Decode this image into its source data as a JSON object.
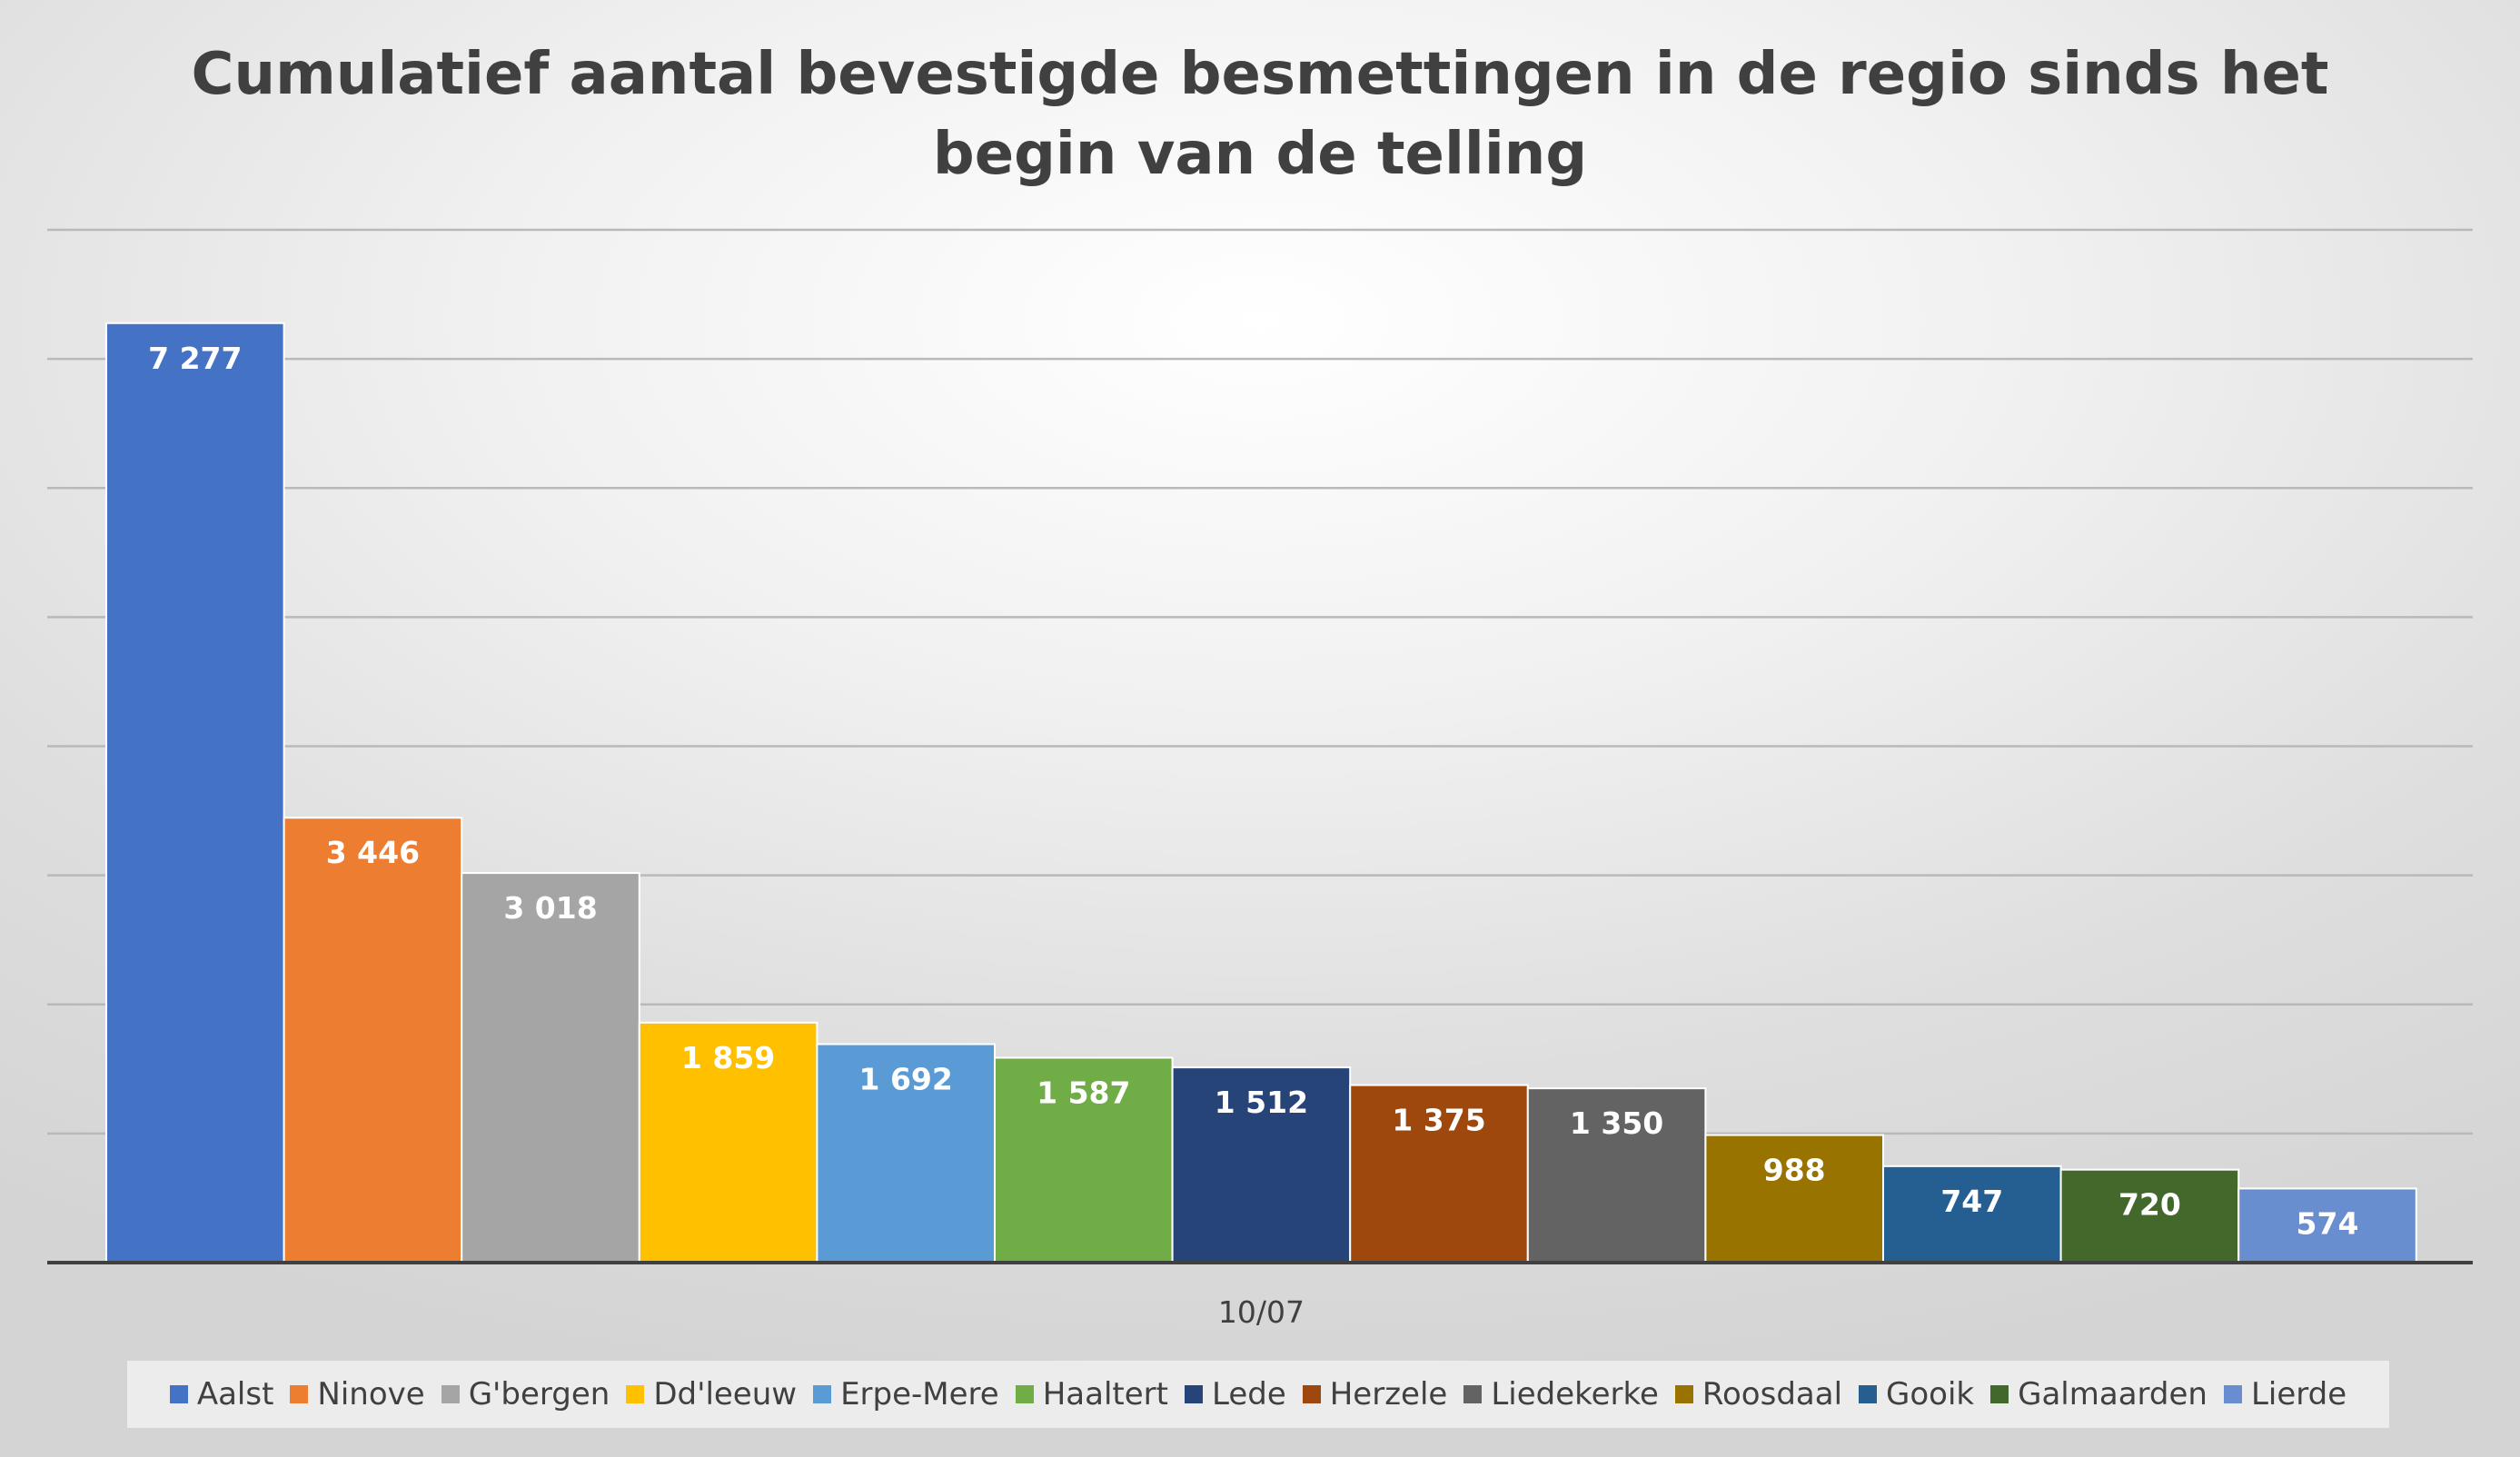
{
  "chart_data": {
    "type": "bar",
    "title": "Cumulatief aantal bevestigde besmettingen in de regio sinds het begin van de telling",
    "categories": [
      "10/07"
    ],
    "series": [
      {
        "name": "Aalst",
        "values": [
          7277
        ],
        "label": "7 277",
        "color": "#4472C4"
      },
      {
        "name": "Ninove",
        "values": [
          3446
        ],
        "label": "3 446",
        "color": "#ED7D31"
      },
      {
        "name": "G'bergen",
        "values": [
          3018
        ],
        "label": "3 018",
        "color": "#A5A5A5"
      },
      {
        "name": "Dd'leeuw",
        "values": [
          1859
        ],
        "label": "1 859",
        "color": "#FFC000"
      },
      {
        "name": "Erpe-Mere",
        "values": [
          1692
        ],
        "label": "1 692",
        "color": "#5B9BD5"
      },
      {
        "name": "Haaltert",
        "values": [
          1587
        ],
        "label": "1 587",
        "color": "#70AD47"
      },
      {
        "name": "Lede",
        "values": [
          1512
        ],
        "label": "1 512",
        "color": "#264478"
      },
      {
        "name": "Herzele",
        "values": [
          1375
        ],
        "label": "1 375",
        "color": "#9E480E"
      },
      {
        "name": "Liedekerke",
        "values": [
          1350
        ],
        "label": "1 350",
        "color": "#636363"
      },
      {
        "name": "Roosdaal",
        "values": [
          988
        ],
        "label": "988",
        "color": "#997300"
      },
      {
        "name": "Gooik",
        "values": [
          747
        ],
        "label": "747",
        "color": "#255E91"
      },
      {
        "name": "Galmaarden",
        "values": [
          720
        ],
        "label": "720",
        "color": "#43682B"
      },
      {
        "name": "Lierde",
        "values": [
          574
        ],
        "label": "574",
        "color": "#698ED0"
      }
    ],
    "ylim": [
      0,
      8000
    ],
    "gridline_step": 1000,
    "grid": true,
    "legend_position": "bottom",
    "xlabel": "",
    "ylabel": ""
  }
}
